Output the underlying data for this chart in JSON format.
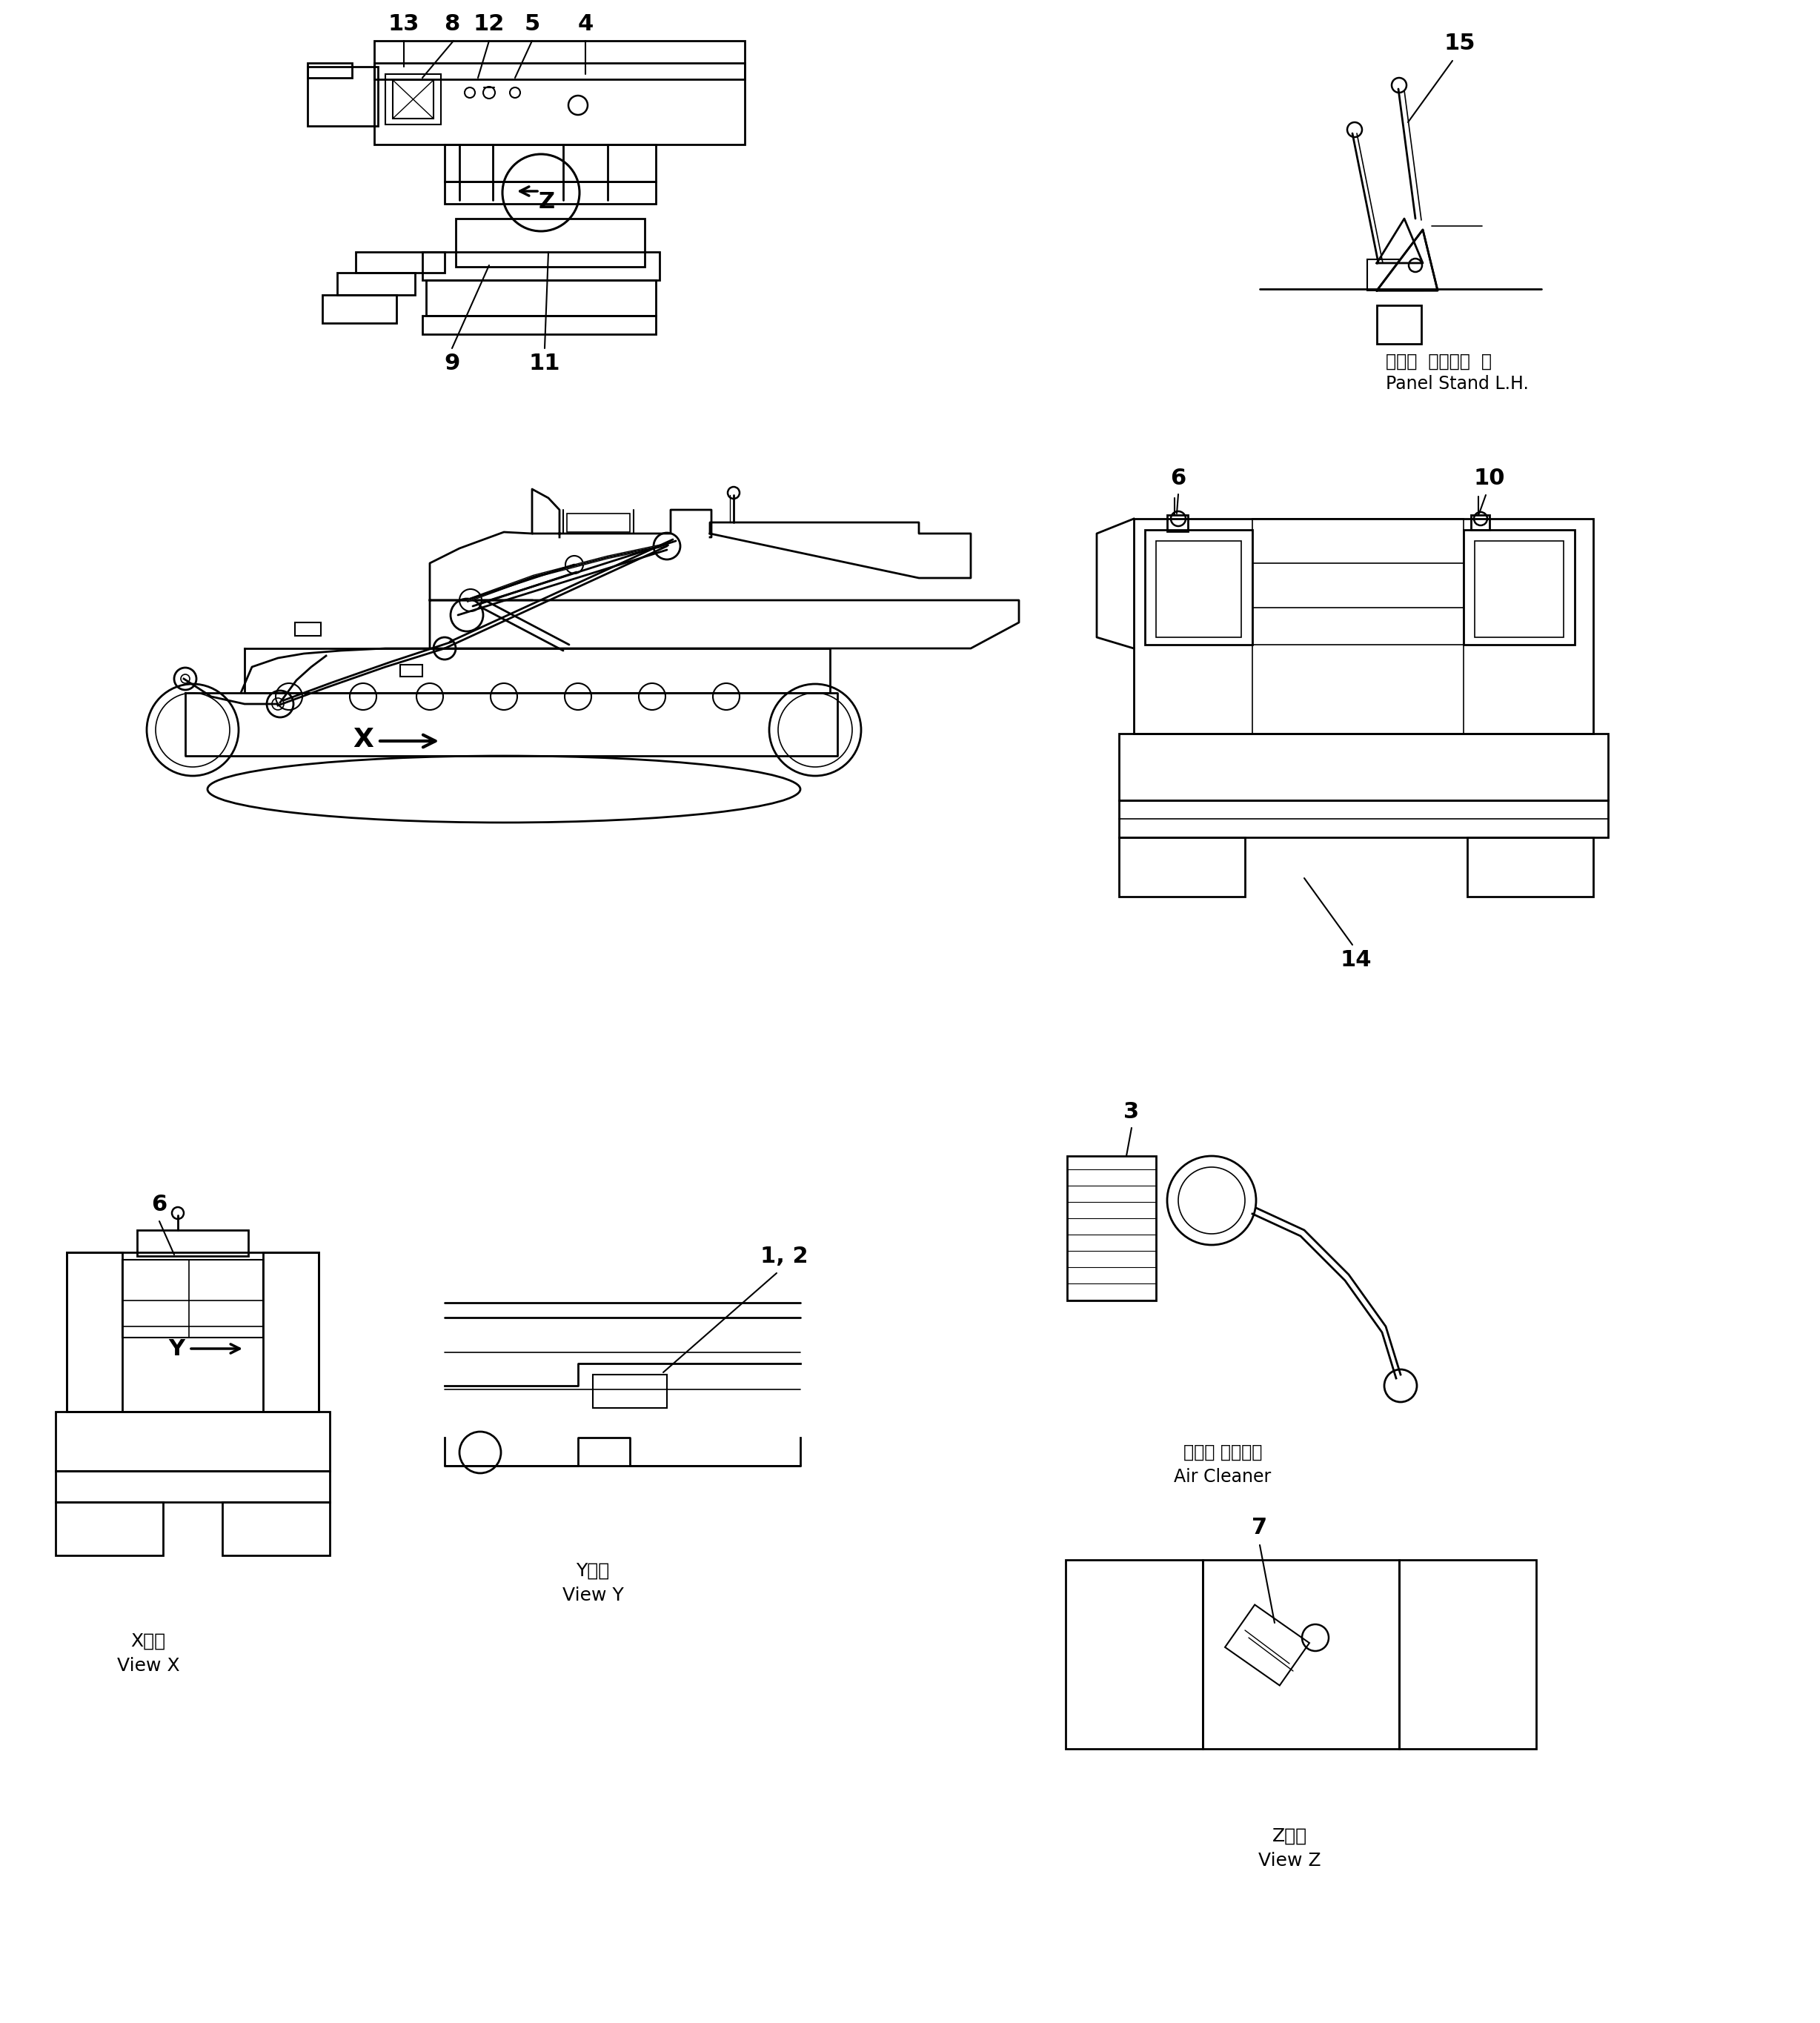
{
  "bg_color": "#ffffff",
  "line_color": "#000000",
  "fig_width": 24.56,
  "fig_height": 27.3,
  "labels": {
    "panel_stand_jp": "パネル  スタンド  左",
    "panel_stand_en": "Panel Stand L.H.",
    "air_cleaner_jp": "エアー クリーナ",
    "air_cleaner_en": "Air Cleaner",
    "view_x_jp": "X　視",
    "view_x_en": "View X",
    "view_y_jp": "Y　視",
    "view_y_en": "View Y",
    "view_z_jp": "Z　視",
    "view_z_en": "View Z"
  }
}
